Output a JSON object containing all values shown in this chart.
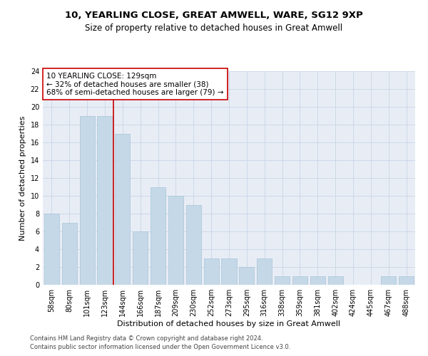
{
  "title1": "10, YEARLING CLOSE, GREAT AMWELL, WARE, SG12 9XP",
  "title2": "Size of property relative to detached houses in Great Amwell",
  "xlabel": "Distribution of detached houses by size in Great Amwell",
  "ylabel": "Number of detached properties",
  "categories": [
    "58sqm",
    "80sqm",
    "101sqm",
    "123sqm",
    "144sqm",
    "166sqm",
    "187sqm",
    "209sqm",
    "230sqm",
    "252sqm",
    "273sqm",
    "295sqm",
    "316sqm",
    "338sqm",
    "359sqm",
    "381sqm",
    "402sqm",
    "424sqm",
    "445sqm",
    "467sqm",
    "488sqm"
  ],
  "values": [
    8,
    7,
    19,
    19,
    17,
    6,
    11,
    10,
    9,
    3,
    3,
    2,
    3,
    1,
    1,
    1,
    1,
    0,
    0,
    1,
    1
  ],
  "bar_color": "#c5d8e8",
  "bar_edge_color": "#a8c4d8",
  "grid_color": "#cdd8e8",
  "background_color": "#e8edf5",
  "vline_x": 3.5,
  "vline_color": "#cc0000",
  "annotation_text": "10 YEARLING CLOSE: 129sqm\n← 32% of detached houses are smaller (38)\n68% of semi-detached houses are larger (79) →",
  "annotation_box_color": "#ffffff",
  "annotation_box_edge": "#cc0000",
  "ylim": [
    0,
    24
  ],
  "yticks": [
    0,
    2,
    4,
    6,
    8,
    10,
    12,
    14,
    16,
    18,
    20,
    22,
    24
  ],
  "footer1": "Contains HM Land Registry data © Crown copyright and database right 2024.",
  "footer2": "Contains public sector information licensed under the Open Government Licence v3.0.",
  "title1_fontsize": 9.5,
  "title2_fontsize": 8.5,
  "xlabel_fontsize": 8,
  "ylabel_fontsize": 8,
  "tick_fontsize": 7,
  "annotation_fontsize": 7.5,
  "footer_fontsize": 6
}
